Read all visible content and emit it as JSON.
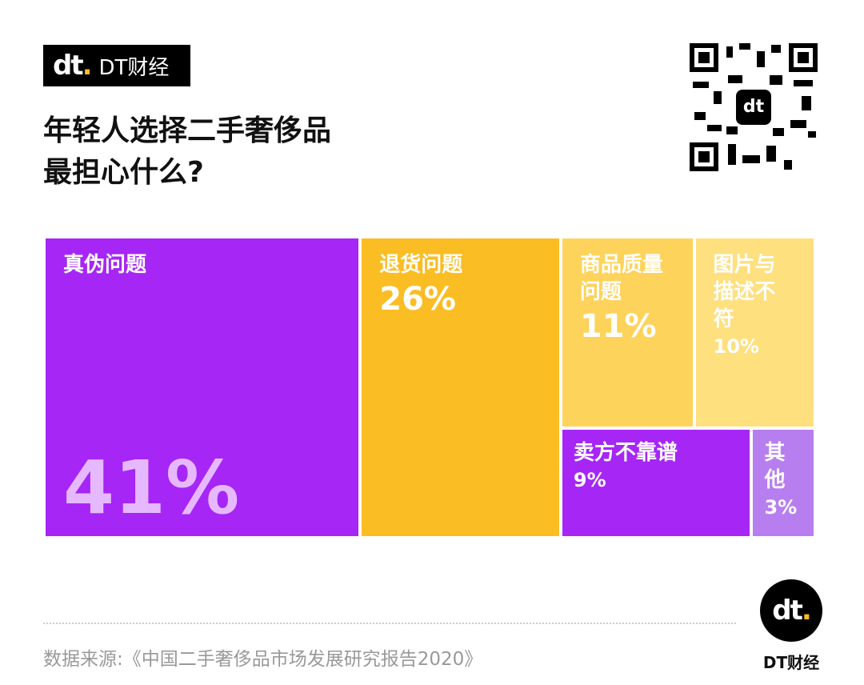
{
  "brand": "DT财经",
  "chart_data": {
    "type": "treemap",
    "title": "年轻人选择二手奢侈品\n最担心什么?",
    "categories": [
      "真伪问题",
      "退货问题",
      "商品质量\n问题",
      "图片与\n描述不符",
      "卖方不靠谱",
      "其他"
    ],
    "values": [
      41,
      26,
      11,
      10,
      9,
      3
    ],
    "value_labels": [
      "41%",
      "26%",
      "11%",
      "10%",
      "9%",
      "3%"
    ],
    "colors": [
      "#a626f5",
      "#fbbd24",
      "#fdd35b",
      "#fee07f",
      "#a626f5",
      "#b77ef0"
    ],
    "source": "数据来源:《中国二手奢侈品市场发展研究报告2020》"
  },
  "footer_brand": "DT财经"
}
